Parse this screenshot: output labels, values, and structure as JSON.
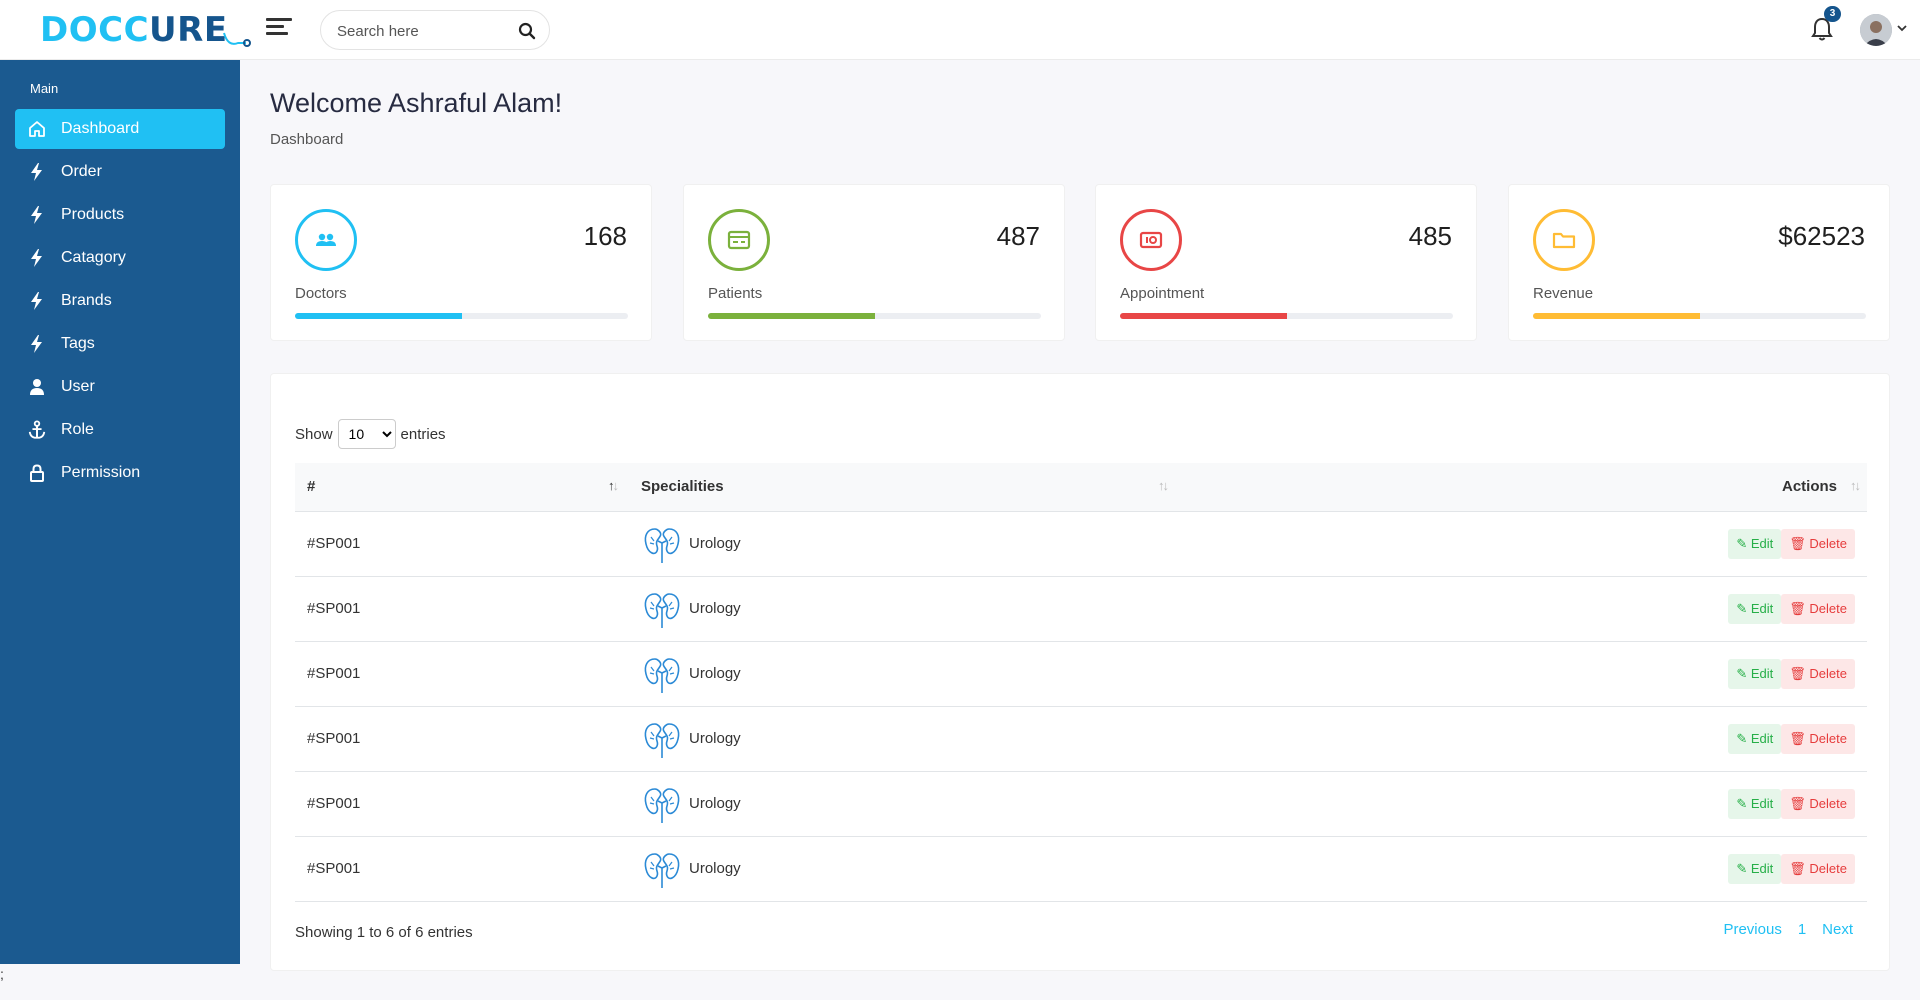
{
  "brand": {
    "part1": "DOCC",
    "part2": "ure"
  },
  "header": {
    "search_placeholder": "Search here",
    "notification_count": "3"
  },
  "sidebar": {
    "section_title": "Main",
    "items": [
      {
        "label": "Dashboard",
        "icon": "home-icon"
      },
      {
        "label": "Order",
        "icon": "bolt-icon"
      },
      {
        "label": "Products",
        "icon": "bolt-icon"
      },
      {
        "label": "Catagory",
        "icon": "bolt-icon"
      },
      {
        "label": "Brands",
        "icon": "bolt-icon"
      },
      {
        "label": "Tags",
        "icon": "bolt-icon"
      },
      {
        "label": "User",
        "icon": "user-icon"
      },
      {
        "label": "Role",
        "icon": "anchor-icon"
      },
      {
        "label": "Permission",
        "icon": "lock-icon"
      }
    ]
  },
  "page": {
    "title": "Welcome Ashraful Alam!",
    "breadcrumb": "Dashboard"
  },
  "stats": [
    {
      "label": "Doctors",
      "value": "168",
      "color": "#20c0f3",
      "icon": "users-icon",
      "progress": 0.5
    },
    {
      "label": "Patients",
      "value": "487",
      "color": "#7bb13c",
      "icon": "credit-card-icon",
      "progress": 0.5
    },
    {
      "label": "Appointment",
      "value": "485",
      "color": "#e84646",
      "icon": "money-icon",
      "progress": 0.5
    },
    {
      "label": "Revenue",
      "value": "$62523",
      "color": "#ffbc34",
      "icon": "folder-icon",
      "progress": 0.5
    }
  ],
  "table": {
    "show_label": "Show",
    "entries_label": "entries",
    "page_size": "10",
    "columns": [
      "#",
      "Specialities",
      "Actions"
    ],
    "rows": [
      {
        "id": "#SP001",
        "speciality": "Urology"
      },
      {
        "id": "#SP001",
        "speciality": "Urology"
      },
      {
        "id": "#SP001",
        "speciality": "Urology"
      },
      {
        "id": "#SP001",
        "speciality": "Urology"
      },
      {
        "id": "#SP001",
        "speciality": "Urology"
      },
      {
        "id": "#SP001",
        "speciality": "Urology"
      }
    ],
    "edit_label": "Edit",
    "delete_label": "Delete",
    "showing_text": "Showing 1 to 6 of 6 entries",
    "pager": {
      "previous": "Previous",
      "page": "1",
      "next": "Next"
    }
  },
  "footer_text": ";"
}
